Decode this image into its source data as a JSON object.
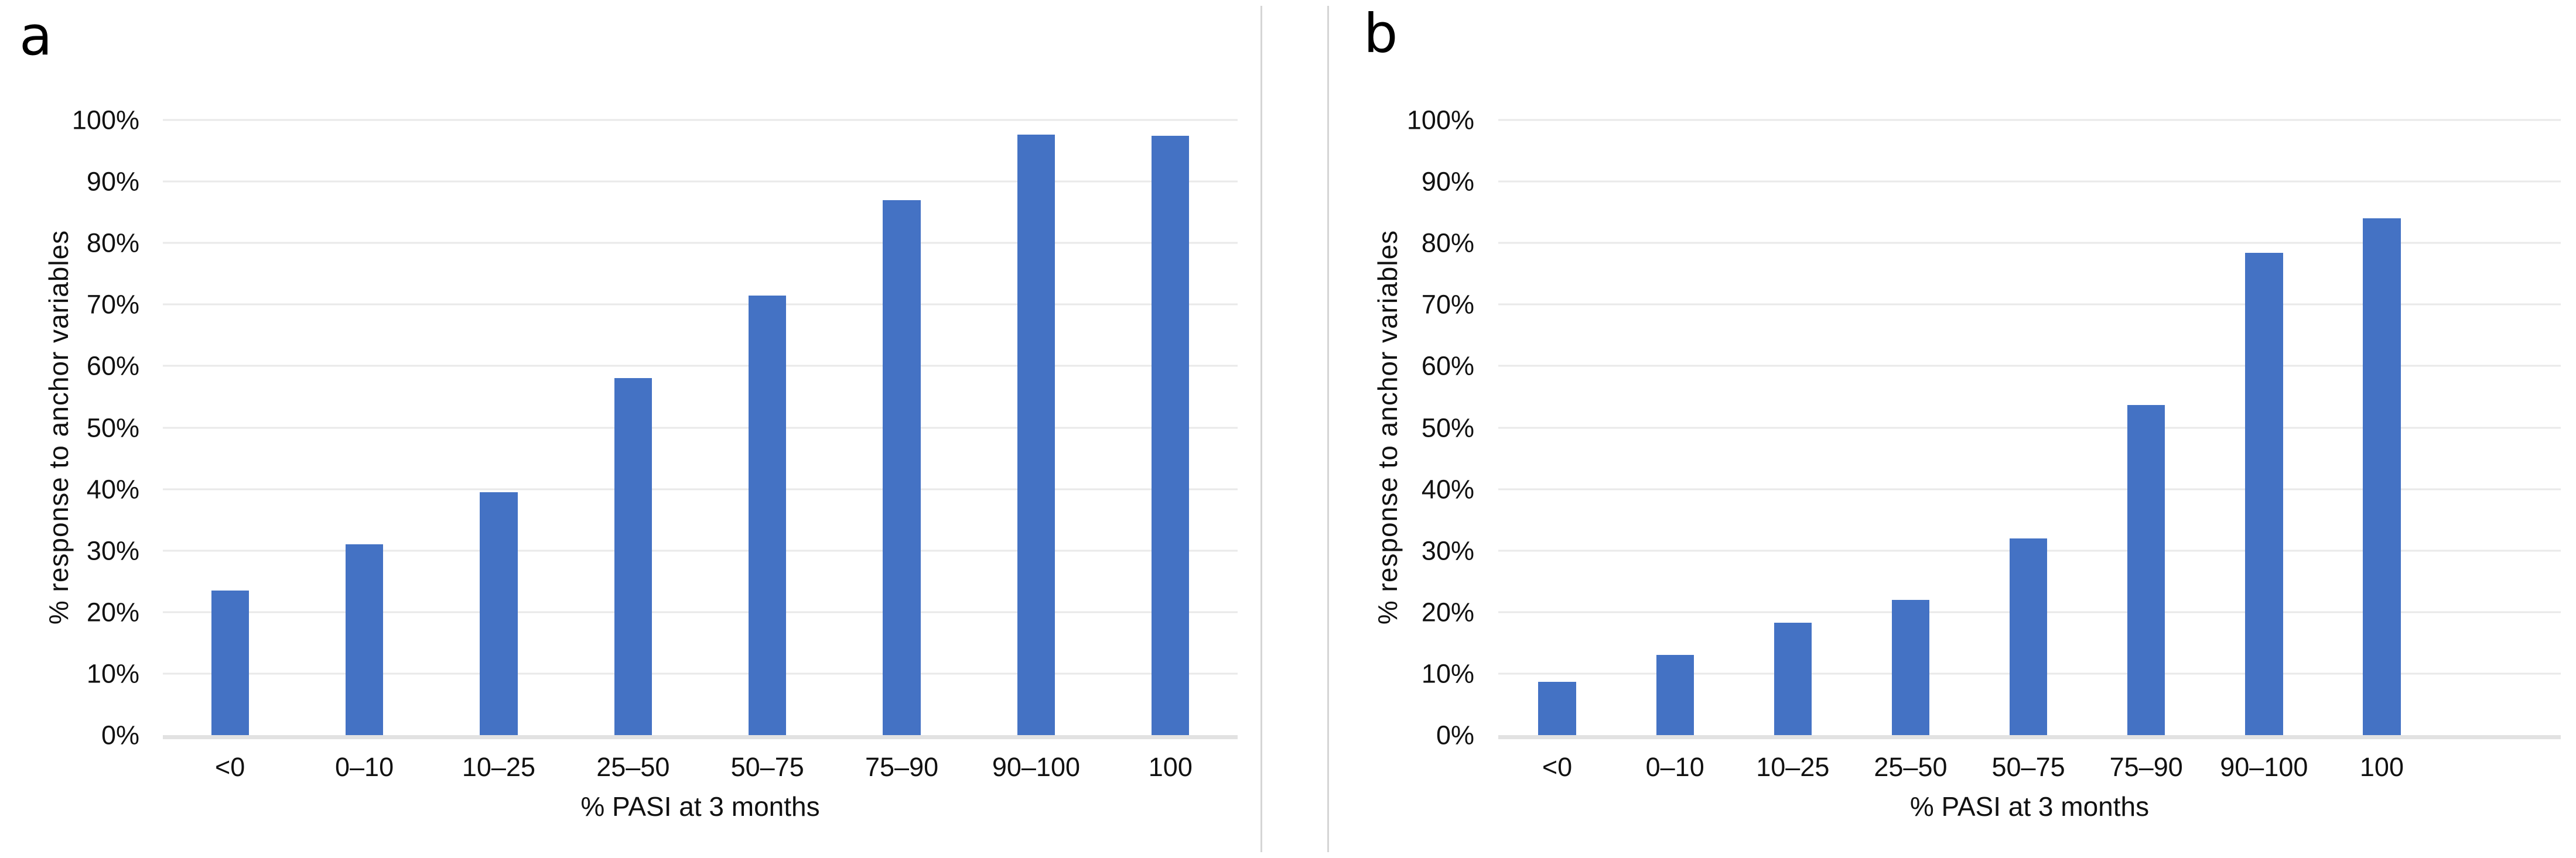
{
  "styles": {
    "bar_color": "#4472C4",
    "gridline_color": "#E9E9E9",
    "axis_line_color": "#E2E2E2",
    "divider_color": "#D5D5D5",
    "text_color": "#111111",
    "background_color": "#FFFFFF"
  },
  "chart_data": [
    {
      "type": "bar",
      "panel_label": "a",
      "title": "",
      "categories": [
        "<0",
        "0–10",
        "10–25",
        "25–50",
        "50–75",
        "75–90",
        "90–100",
        "100"
      ],
      "values": [
        23.5,
        31,
        39.5,
        58,
        71.5,
        87,
        97.6,
        97.4
      ],
      "xlabel": "% PASI at 3 months",
      "ylabel": "% response to anchor variables",
      "ylim": [
        0,
        100
      ],
      "ytick_step": 10,
      "ytick_suffix": "%",
      "grid": true,
      "legend": "none",
      "bar_width_frac": 0.28,
      "category_area_frac": 1.0
    },
    {
      "type": "bar",
      "panel_label": "b",
      "title": "",
      "categories": [
        "<0",
        "0–10",
        "10–25",
        "25–50",
        "50–75",
        "75–90",
        "90–100",
        "100"
      ],
      "values": [
        8.7,
        13,
        18.3,
        22,
        32,
        53.7,
        78.4,
        84
      ],
      "xlabel": "% PASI at 3 months",
      "ylabel": "% response to anchor variables",
      "ylim": [
        0,
        100
      ],
      "ytick_step": 10,
      "ytick_suffix": "%",
      "grid": true,
      "legend": "none",
      "bar_width_frac": 0.32,
      "category_area_frac": 0.887
    }
  ]
}
